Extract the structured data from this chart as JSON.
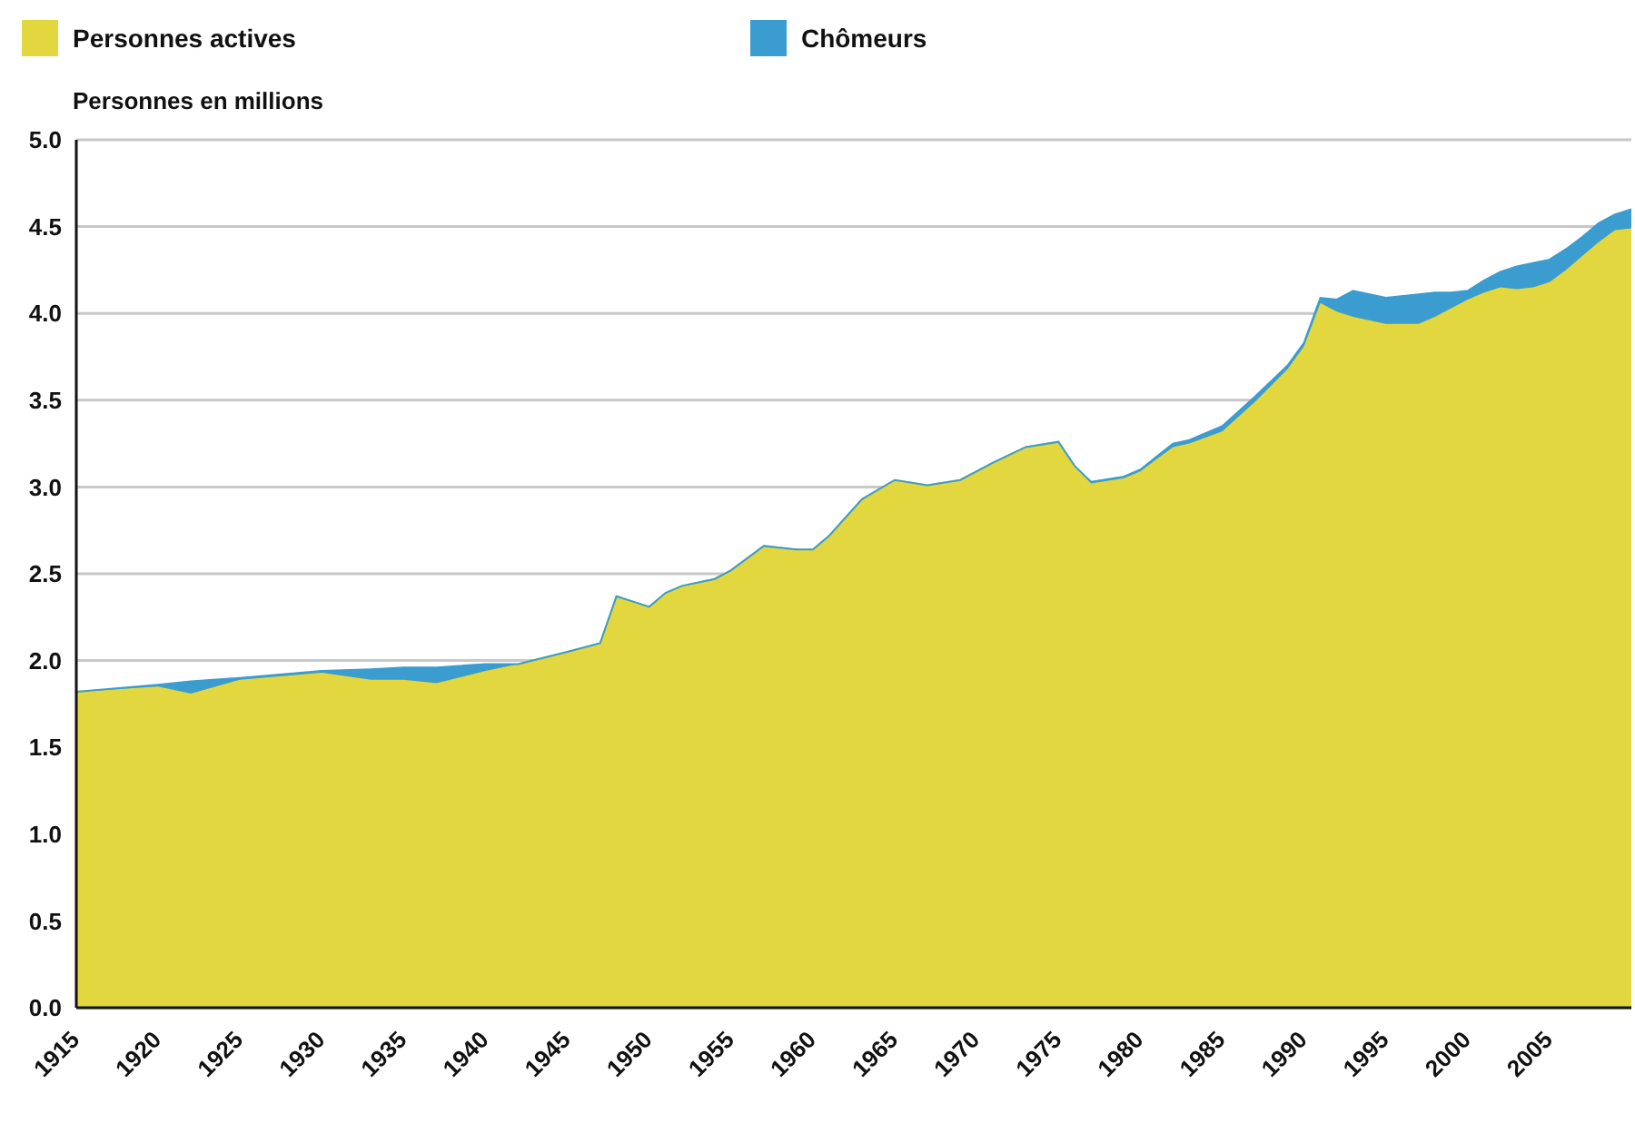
{
  "chart_data": {
    "type": "area",
    "stacked": true,
    "ylabel": "Personnes en millions",
    "x": [
      1915,
      1920,
      1922,
      1925,
      1930,
      1933,
      1935,
      1937,
      1940,
      1942,
      1945,
      1947,
      1948,
      1950,
      1951,
      1952,
      1954,
      1955,
      1957,
      1959,
      1960,
      1961,
      1963,
      1965,
      1967,
      1969,
      1971,
      1973,
      1975,
      1976,
      1977,
      1979,
      1980,
      1982,
      1983,
      1985,
      1987,
      1989,
      1990,
      1991,
      1992,
      1993,
      1995,
      1997,
      1998,
      1999,
      2000,
      2001,
      2002,
      2003,
      2004,
      2005,
      2006,
      2007,
      2008,
      2009,
      2010
    ],
    "series": [
      {
        "name": "Personnes actives",
        "color": "#e2d73e",
        "values": [
          1.82,
          1.85,
          1.81,
          1.89,
          1.93,
          1.89,
          1.89,
          1.87,
          1.94,
          1.98,
          2.05,
          2.1,
          2.37,
          2.31,
          2.39,
          2.43,
          2.47,
          2.52,
          2.66,
          2.64,
          2.64,
          2.72,
          2.93,
          3.04,
          3.01,
          3.04,
          3.14,
          3.23,
          3.26,
          3.12,
          3.02,
          3.05,
          3.09,
          3.23,
          3.25,
          3.32,
          3.49,
          3.68,
          3.81,
          4.06,
          4.01,
          3.98,
          3.94,
          3.94,
          3.98,
          4.03,
          4.08,
          4.12,
          4.15,
          4.14,
          4.15,
          4.18,
          4.25,
          4.33,
          4.41,
          4.48,
          4.49
        ]
      },
      {
        "name": "Chômeurs",
        "color": "#3b9ccf",
        "values": [
          0,
          0.01,
          0.07,
          0.01,
          0.01,
          0.06,
          0.07,
          0.09,
          0.04,
          0,
          0,
          0,
          0,
          0,
          0,
          0,
          0,
          0,
          0,
          0,
          0,
          0,
          0,
          0,
          0,
          0,
          0,
          0,
          0,
          0,
          0.01,
          0.01,
          0.01,
          0.02,
          0.02,
          0.03,
          0.03,
          0.02,
          0.02,
          0.03,
          0.07,
          0.15,
          0.15,
          0.17,
          0.14,
          0.09,
          0.05,
          0.07,
          0.09,
          0.13,
          0.14,
          0.13,
          0.12,
          0.11,
          0.11,
          0.09,
          0.11
        ]
      }
    ],
    "xlim": [
      1915,
      2010
    ],
    "xticks": [
      1915,
      1920,
      1925,
      1930,
      1935,
      1940,
      1945,
      1950,
      1955,
      1960,
      1965,
      1970,
      1975,
      1980,
      1985,
      1990,
      1995,
      2000,
      2005
    ],
    "ylim": [
      0,
      5
    ],
    "yticks": [
      {
        "value": 0,
        "label": "0.0"
      },
      {
        "value": 0.5,
        "label": "0.5"
      },
      {
        "value": 1,
        "label": "1.0"
      },
      {
        "value": 1.5,
        "label": "1.5"
      },
      {
        "value": 2,
        "label": "2.0"
      },
      {
        "value": 2.5,
        "label": "2.5"
      },
      {
        "value": 3,
        "label": "3.0"
      },
      {
        "value": 3.5,
        "label": "3.5"
      },
      {
        "value": 4,
        "label": "4.0"
      },
      {
        "value": 4.5,
        "label": "4.5"
      },
      {
        "value": 5,
        "label": "5.0"
      }
    ],
    "grid": "y",
    "legend": "top left"
  }
}
